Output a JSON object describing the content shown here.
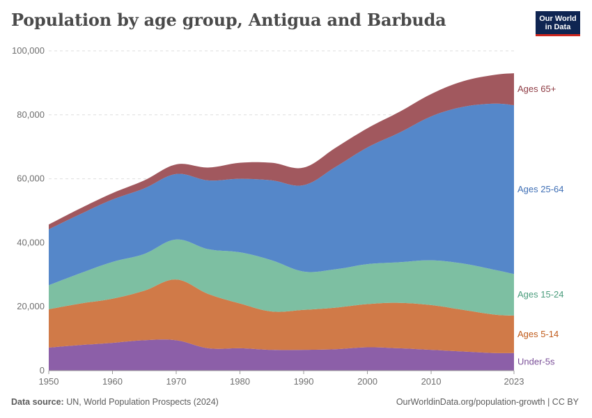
{
  "header": {
    "title": "Population by age group, Antigua and Barbuda",
    "logo_line1": "Our World",
    "logo_line2": "in Data"
  },
  "footer": {
    "source_label": "Data source:",
    "source_text": "UN, World Population Prospects (2024)",
    "link_text": "OurWorldinData.org/population-growth | CC BY"
  },
  "chart_data": {
    "type": "area",
    "stacked": true,
    "title": "Population by age group, Antigua and Barbuda",
    "xlabel": "",
    "ylabel": "",
    "xlim": [
      1950,
      2023
    ],
    "ylim": [
      0,
      100000
    ],
    "x_ticks": [
      1950,
      1960,
      1970,
      1980,
      1990,
      2000,
      2010,
      2023
    ],
    "x_tick_labels": [
      "1950",
      "1960",
      "1970",
      "1980",
      "1990",
      "2000",
      "2010",
      "2023"
    ],
    "y_ticks": [
      0,
      20000,
      40000,
      60000,
      80000,
      100000
    ],
    "y_tick_labels": [
      "0",
      "20,000",
      "40,000",
      "60,000",
      "80,000",
      "100,000"
    ],
    "grid": true,
    "legend_position": "right, inline labels",
    "x": [
      1950,
      1955,
      1960,
      1965,
      1970,
      1975,
      1980,
      1985,
      1990,
      1995,
      2000,
      2005,
      2010,
      2015,
      2020,
      2023
    ],
    "series": [
      {
        "name": "Under-5s",
        "label": "Under-5s",
        "color": "#8c5fa8",
        "label_color": "#7a4f98",
        "values": [
          7200,
          8000,
          8700,
          9500,
          9500,
          7000,
          7000,
          6500,
          6500,
          6700,
          7300,
          7000,
          6500,
          6000,
          5500,
          5500
        ]
      },
      {
        "name": "Ages 5-14",
        "label": "Ages 5-14",
        "color": "#d07a48",
        "label_color": "#c05b1a",
        "values": [
          12000,
          13000,
          13800,
          15500,
          19000,
          17000,
          14000,
          12000,
          12500,
          13000,
          13500,
          14200,
          14000,
          13000,
          12000,
          11700
        ]
      },
      {
        "name": "Ages 15-24",
        "label": "Ages 15-24",
        "color": "#7dbfa2",
        "label_color": "#4a9c7c",
        "values": [
          7500,
          9500,
          11500,
          11500,
          12500,
          14000,
          16000,
          16000,
          12000,
          12000,
          12500,
          12700,
          14000,
          14500,
          14000,
          13000
        ]
      },
      {
        "name": "Ages 25-64",
        "label": "Ages 25-64",
        "color": "#5587c9",
        "label_color": "#3f6fb5",
        "values": [
          17500,
          18500,
          19500,
          20500,
          20500,
          21500,
          23000,
          25000,
          27000,
          32000,
          36500,
          40500,
          45000,
          49000,
          52000,
          52800
        ]
      },
      {
        "name": "Ages 65+",
        "label": "Ages 65+",
        "color": "#a1585e",
        "label_color": "#8e3b43",
        "values": [
          1500,
          1800,
          2000,
          2500,
          3000,
          4000,
          5000,
          5500,
          5500,
          6000,
          6000,
          6500,
          7000,
          8000,
          9000,
          10000
        ]
      }
    ]
  }
}
